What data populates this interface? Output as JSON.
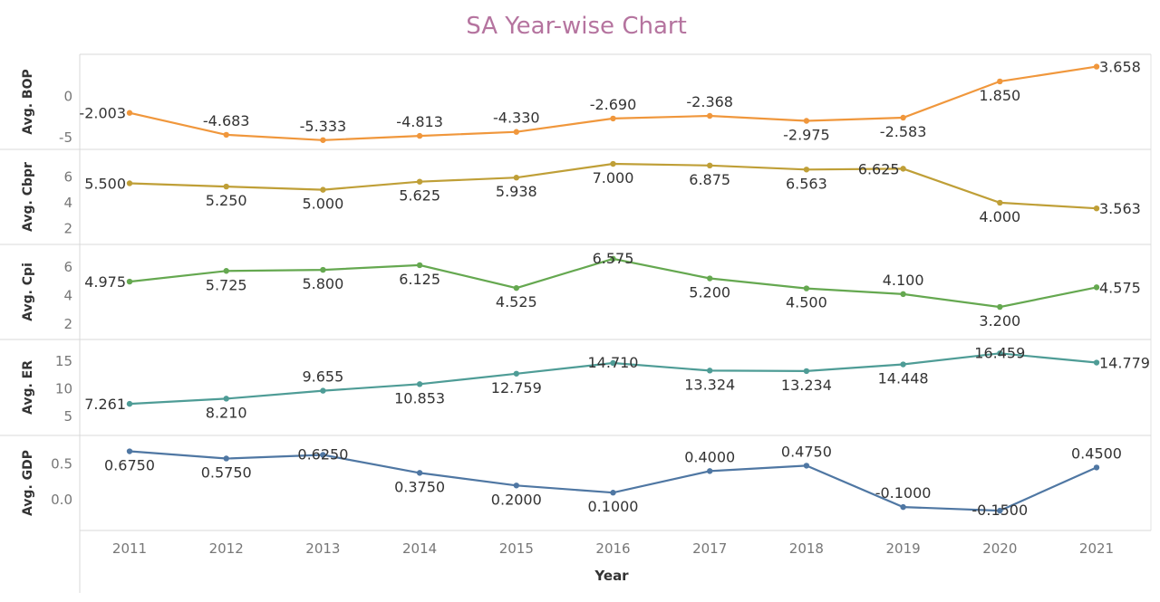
{
  "chart_data": {
    "type": "line",
    "title": "SA Year-wise Chart",
    "xlabel": "Year",
    "x": [
      "2011",
      "2012",
      "2013",
      "2014",
      "2015",
      "2016",
      "2017",
      "2018",
      "2019",
      "2020",
      "2021"
    ],
    "grid": false,
    "panels": [
      {
        "ylabel": "Avg. BOP",
        "color": "#f0973c",
        "ylim": [
          -5.8,
          4.5
        ],
        "yticks": [
          0,
          -5
        ],
        "ytick_labels": [
          "0",
          "-5"
        ],
        "values": [
          -2.003,
          -4.683,
          -5.333,
          -4.813,
          -4.33,
          -2.69,
          -2.368,
          -2.975,
          -2.583,
          1.85,
          3.658
        ],
        "labels": [
          "-2.003",
          "-4.683",
          "-5.333",
          "-4.813",
          "-4.330",
          "-2.690",
          "-2.368",
          "-2.975",
          "-2.583",
          "1.850",
          "3.658"
        ],
        "label_pos": [
          "left",
          "above",
          "above",
          "above",
          "above",
          "above",
          "above",
          "below",
          "below",
          "below",
          "right"
        ]
      },
      {
        "ylabel": "Avg. Cbpr",
        "color": "#bf9f37",
        "ylim": [
          1.2,
          7.7
        ],
        "yticks": [
          6,
          4,
          2
        ],
        "ytick_labels": [
          "6",
          "4",
          "2"
        ],
        "values": [
          5.5,
          5.25,
          5.0,
          5.625,
          5.938,
          7.0,
          6.875,
          6.563,
          6.625,
          4.0,
          3.563
        ],
        "labels": [
          "5.500",
          "5.250",
          "5.000",
          "5.625",
          "5.938",
          "7.000",
          "6.875",
          "6.563",
          "6.625",
          "4.000",
          "3.563"
        ],
        "label_pos": [
          "left",
          "below",
          "below",
          "below",
          "below",
          "below",
          "below",
          "below",
          "left",
          "below",
          "right"
        ]
      },
      {
        "ylabel": "Avg. Cpi",
        "color": "#65a850",
        "ylim": [
          1.3,
          7.2
        ],
        "yticks": [
          6,
          4,
          2
        ],
        "ytick_labels": [
          "6",
          "4",
          "2"
        ],
        "values": [
          4.975,
          5.725,
          5.8,
          6.125,
          4.525,
          6.575,
          5.2,
          4.5,
          4.1,
          3.2,
          4.575
        ],
        "labels": [
          "4.975",
          "5.725",
          "5.800",
          "6.125",
          "4.525",
          "6.575",
          "5.200",
          "4.500",
          "4.100",
          "3.200",
          "4.575"
        ],
        "label_pos": [
          "left",
          "below",
          "below",
          "below",
          "below",
          "on",
          "below",
          "below",
          "above",
          "below",
          "right"
        ]
      },
      {
        "ylabel": "Avg. ER",
        "color": "#4e9c96",
        "ylim": [
          2.5,
          18.0
        ],
        "yticks": [
          15,
          10,
          5
        ],
        "ytick_labels": [
          "15",
          "10",
          "5"
        ],
        "values": [
          7.261,
          8.21,
          9.655,
          10.853,
          12.759,
          14.71,
          13.324,
          13.234,
          14.448,
          16.459,
          14.779
        ],
        "labels": [
          "7.261",
          "8.210",
          "9.655",
          "10.853",
          "12.759",
          "14.710",
          "13.324",
          "13.234",
          "14.448",
          "16.459",
          "14.779"
        ],
        "label_pos": [
          "left",
          "below",
          "above",
          "below",
          "below",
          "on",
          "below",
          "below",
          "below",
          "on",
          "right"
        ]
      },
      {
        "ylabel": "Avg. GDP",
        "color": "#4f77a3",
        "ylim": [
          -0.35,
          0.82
        ],
        "yticks": [
          0.5,
          0.0
        ],
        "ytick_labels": [
          "0.5",
          "0.0"
        ],
        "values": [
          0.675,
          0.575,
          0.625,
          0.375,
          0.2,
          0.1,
          0.4,
          0.475,
          -0.1,
          -0.15,
          0.45
        ],
        "labels": [
          "0.6750",
          "0.5750",
          "0.6250",
          "0.3750",
          "0.2000",
          "0.1000",
          "0.4000",
          "0.4750",
          "-0.1000",
          "-0.1500",
          "0.4500"
        ],
        "label_pos": [
          "below",
          "below",
          "on",
          "below",
          "below",
          "below",
          "above",
          "above",
          "above",
          "on",
          "above"
        ]
      }
    ]
  }
}
